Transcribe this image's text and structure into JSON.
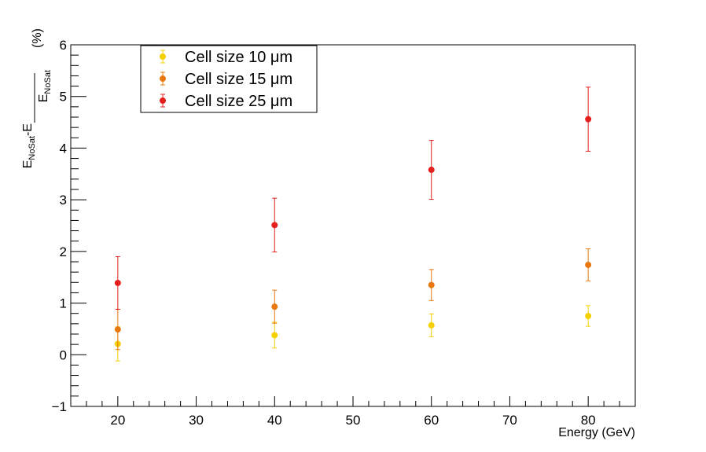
{
  "chart_data": {
    "type": "scatter",
    "title": "",
    "xlabel": "Energy (GeV)",
    "ylabel": {
      "numerator_main": "E",
      "numerator_sub": "NoSat",
      "numerator_rest": "-E",
      "denominator_main": "E",
      "denominator_sub": "NoSat",
      "unit": "(%)"
    },
    "xlim": [
      14,
      86
    ],
    "ylim": [
      -1,
      6
    ],
    "xticks": [
      20,
      30,
      40,
      50,
      60,
      70,
      80
    ],
    "yticks": [
      -1,
      0,
      1,
      2,
      3,
      4,
      5,
      6
    ],
    "grid": false,
    "legend_position": "top-left",
    "series": [
      {
        "name": "Cell size 10 μm",
        "color": "#f5d000",
        "points": [
          {
            "x": 20,
            "y": 0.21,
            "err_low": 0.33,
            "err_high": 0.33
          },
          {
            "x": 40,
            "y": 0.38,
            "err_low": 0.25,
            "err_high": 0.25
          },
          {
            "x": 60,
            "y": 0.57,
            "err_low": 0.22,
            "err_high": 0.22
          },
          {
            "x": 80,
            "y": 0.75,
            "err_low": 0.2,
            "err_high": 0.2
          }
        ]
      },
      {
        "name": "Cell size 15 μm",
        "color": "#e9780f",
        "points": [
          {
            "x": 20,
            "y": 0.49,
            "err_low": 0.39,
            "err_high": 0.39
          },
          {
            "x": 40,
            "y": 0.93,
            "err_low": 0.32,
            "err_high": 0.32
          },
          {
            "x": 60,
            "y": 1.35,
            "err_low": 0.3,
            "err_high": 0.3
          },
          {
            "x": 80,
            "y": 1.74,
            "err_low": 0.31,
            "err_high": 0.31
          }
        ]
      },
      {
        "name": "Cell size 25 μm",
        "color": "#e4201e",
        "points": [
          {
            "x": 20,
            "y": 1.39,
            "err_low": 0.51,
            "err_high": 0.51
          },
          {
            "x": 40,
            "y": 2.51,
            "err_low": 0.52,
            "err_high": 0.52
          },
          {
            "x": 60,
            "y": 3.58,
            "err_low": 0.57,
            "err_high": 0.57
          },
          {
            "x": 80,
            "y": 4.56,
            "err_low": 0.62,
            "err_high": 0.62
          }
        ]
      }
    ]
  }
}
